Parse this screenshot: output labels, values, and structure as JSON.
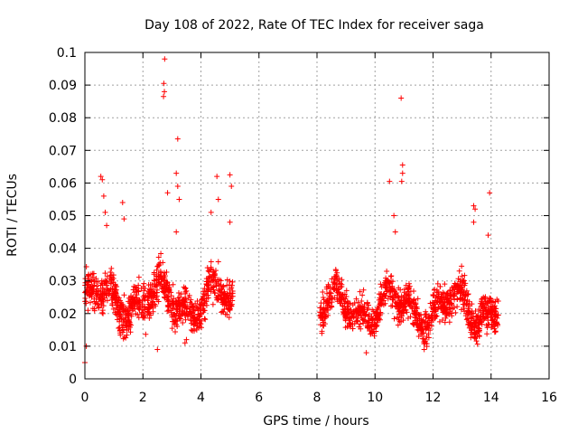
{
  "chart_data": {
    "type": "scatter",
    "title": "Day 108 of 2022, Rate Of TEC Index for receiver saga",
    "xlabel": "GPS time / hours",
    "ylabel": "ROTI / TECUs",
    "xlim": [
      0,
      16
    ],
    "ylim": [
      0,
      0.1
    ],
    "xticks": [
      "0",
      "2",
      "4",
      "6",
      "8",
      "10",
      "12",
      "14",
      "16"
    ],
    "yticks": [
      "0",
      "0.01",
      "0.02",
      "0.03",
      "0.04",
      "0.05",
      "0.06",
      "0.07",
      "0.08",
      "0.09",
      "0.1"
    ],
    "grid": true,
    "marker": "+",
    "color": "#ff0000",
    "series": [
      {
        "name": "ROTI",
        "segments": [
          {
            "x_start": 0.0,
            "x_end": 5.1,
            "level": 0.024,
            "spread": 0.009
          },
          {
            "x_start": 8.1,
            "x_end": 14.25,
            "level": 0.022,
            "spread": 0.008
          }
        ],
        "outliers": [
          {
            "x": 0.0,
            "y": 0.005
          },
          {
            "x": 0.05,
            "y": 0.01
          },
          {
            "x": 0.55,
            "y": 0.062
          },
          {
            "x": 0.6,
            "y": 0.061
          },
          {
            "x": 0.65,
            "y": 0.056
          },
          {
            "x": 0.7,
            "y": 0.051
          },
          {
            "x": 0.75,
            "y": 0.047
          },
          {
            "x": 1.3,
            "y": 0.054
          },
          {
            "x": 1.35,
            "y": 0.049
          },
          {
            "x": 2.5,
            "y": 0.009
          },
          {
            "x": 2.75,
            "y": 0.098
          },
          {
            "x": 2.72,
            "y": 0.0905
          },
          {
            "x": 2.74,
            "y": 0.088
          },
          {
            "x": 2.71,
            "y": 0.0865
          },
          {
            "x": 3.15,
            "y": 0.045
          },
          {
            "x": 3.2,
            "y": 0.0735
          },
          {
            "x": 3.15,
            "y": 0.063
          },
          {
            "x": 3.2,
            "y": 0.059
          },
          {
            "x": 3.25,
            "y": 0.055
          },
          {
            "x": 2.85,
            "y": 0.057
          },
          {
            "x": 3.45,
            "y": 0.011
          },
          {
            "x": 3.5,
            "y": 0.012
          },
          {
            "x": 4.35,
            "y": 0.051
          },
          {
            "x": 4.55,
            "y": 0.062
          },
          {
            "x": 4.6,
            "y": 0.055
          },
          {
            "x": 5.0,
            "y": 0.0625
          },
          {
            "x": 5.05,
            "y": 0.059
          },
          {
            "x": 5.0,
            "y": 0.048
          },
          {
            "x": 9.7,
            "y": 0.008
          },
          {
            "x": 10.5,
            "y": 0.0605
          },
          {
            "x": 10.65,
            "y": 0.05
          },
          {
            "x": 10.7,
            "y": 0.045
          },
          {
            "x": 10.9,
            "y": 0.086
          },
          {
            "x": 10.95,
            "y": 0.0655
          },
          {
            "x": 10.95,
            "y": 0.063
          },
          {
            "x": 10.92,
            "y": 0.0605
          },
          {
            "x": 13.4,
            "y": 0.053
          },
          {
            "x": 13.45,
            "y": 0.052
          },
          {
            "x": 13.4,
            "y": 0.048
          },
          {
            "x": 13.95,
            "y": 0.057
          },
          {
            "x": 13.9,
            "y": 0.044
          }
        ]
      }
    ]
  }
}
